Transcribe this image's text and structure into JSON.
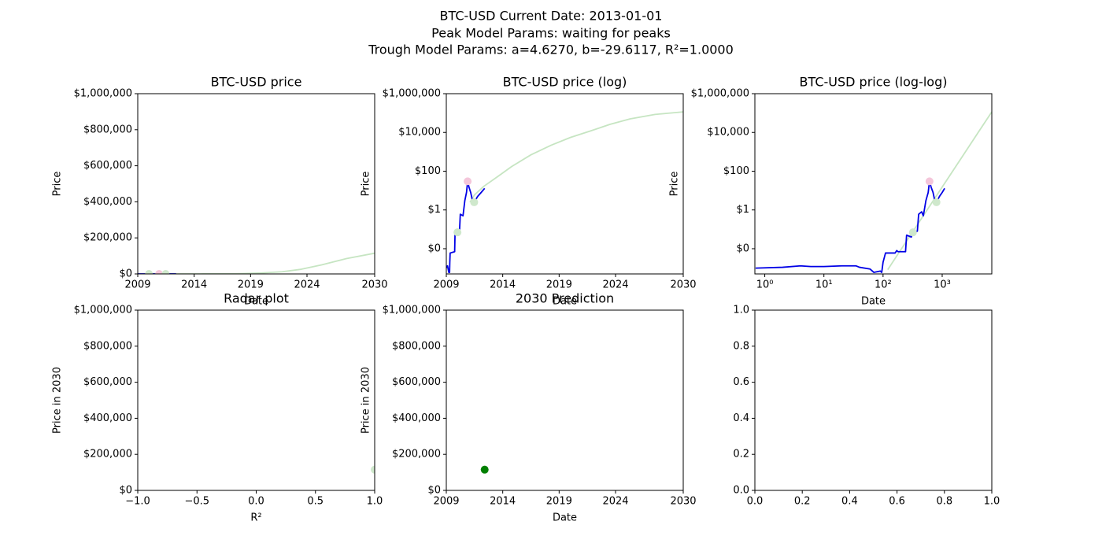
{
  "suptitle": [
    "BTC-USD Current Date: 2013-01-01",
    "Peak Model Params: waiting for peaks",
    "Trough Model Params: a=4.6270, b=-29.6117, R²=1.0000"
  ],
  "chart_data": [
    {
      "type": "line",
      "title": "BTC-USD price",
      "xlabel": "Date",
      "ylabel": "Price",
      "xlim": [
        2009,
        2030
      ],
      "xticks": [
        2009,
        2014,
        2019,
        2024,
        2030
      ],
      "ylim": [
        0,
        1000000
      ],
      "yticks": [
        {
          "value": 0,
          "label": "$0"
        },
        {
          "value": 200000,
          "label": "$200,000"
        },
        {
          "value": 400000,
          "label": "$400,000"
        },
        {
          "value": 600000,
          "label": "$600,000"
        },
        {
          "value": 800000,
          "label": "$800,000"
        },
        {
          "value": 1000000,
          "label": "$1,000,000"
        }
      ],
      "series": [
        {
          "kind": "line",
          "color": "#c6e5c2",
          "x": [
            2011.1,
            2011.5,
            2012.35,
            2013.5,
            2014.8,
            2016.5,
            2018.3,
            2020,
            2021.8,
            2023.5,
            2025.3,
            2027.5,
            2030
          ],
          "values": [
            2.5,
            6,
            17,
            50,
            175,
            700,
            2200,
            5500,
            12000,
            26000,
            50000,
            85000,
            115000
          ]
        },
        {
          "kind": "line",
          "color": "#0000e6",
          "x": [
            2009.002,
            2009.03,
            2009.11,
            2009.22,
            2009.29,
            2009.31,
            2009.34,
            2009.74,
            2009.77,
            2009.99,
            2010.17,
            2010.24,
            2010.48,
            2010.64,
            2010.79,
            2010.89,
            2011.01,
            2011.16,
            2011.32,
            2011.47,
            2011.78,
            2012.09,
            2012.4
          ],
          "values": [
            0.001,
            0.0012,
            0.0013,
            0.0006,
            0.0006,
            0.002,
            0.006,
            0.007,
            0.05,
            0.07,
            0.08,
            0.6,
            0.5,
            3,
            8,
            30,
            15,
            8,
            3,
            2.5,
            5,
            8,
            13
          ]
        },
        {
          "kind": "scatter",
          "color": "#f4c6da",
          "x": [
            2010.89
          ],
          "values": [
            30
          ]
        },
        {
          "kind": "scatter",
          "color": "#cfe8cc",
          "x": [
            2009.99,
            2011.47
          ],
          "values": [
            0.07,
            2.5
          ]
        }
      ]
    },
    {
      "type": "line",
      "title": "BTC-USD price (log)",
      "xlabel": "Date",
      "ylabel": "Price",
      "yscale": "log",
      "xlim": [
        2009,
        2030
      ],
      "xticks": [
        2009,
        2014,
        2019,
        2024,
        2030
      ],
      "ylim": [
        0.0005,
        1000000
      ],
      "yticks": [
        {
          "value": 0.01,
          "label": "$0"
        },
        {
          "value": 1,
          "label": "$1"
        },
        {
          "value": 100,
          "label": "$100"
        },
        {
          "value": 10000,
          "label": "$10,000"
        },
        {
          "value": 1000000,
          "label": "$1,000,000"
        }
      ],
      "series": [
        {
          "kind": "line",
          "color": "#c6e5c2",
          "x": [
            2011.1,
            2011.5,
            2012.35,
            2013.5,
            2014.8,
            2016.5,
            2018.3,
            2020,
            2021.8,
            2023.5,
            2025.3,
            2027.5,
            2030
          ],
          "values": [
            2.5,
            6,
            17,
            50,
            175,
            700,
            2200,
            5500,
            12000,
            26000,
            50000,
            85000,
            115000
          ]
        },
        {
          "kind": "line",
          "color": "#0000e6",
          "x": [
            2009.002,
            2009.03,
            2009.11,
            2009.22,
            2009.29,
            2009.31,
            2009.34,
            2009.74,
            2009.77,
            2009.99,
            2010.17,
            2010.24,
            2010.48,
            2010.64,
            2010.79,
            2010.89,
            2011.01,
            2011.16,
            2011.32,
            2011.47,
            2011.78,
            2012.09,
            2012.4
          ],
          "values": [
            0.001,
            0.0012,
            0.0013,
            0.0006,
            0.0006,
            0.002,
            0.006,
            0.007,
            0.05,
            0.07,
            0.08,
            0.6,
            0.5,
            3,
            8,
            30,
            15,
            8,
            3,
            2.5,
            5,
            8,
            13
          ]
        },
        {
          "kind": "scatter",
          "color": "#f4c6da",
          "x": [
            2010.89
          ],
          "values": [
            30
          ]
        },
        {
          "kind": "scatter",
          "color": "#cfe8cc",
          "x": [
            2009.99,
            2011.47
          ],
          "values": [
            0.07,
            2.5
          ]
        }
      ]
    },
    {
      "type": "line",
      "title": "BTC-USD price (log-log)",
      "xlabel": "Date",
      "ylabel": "Price",
      "xscale": "log",
      "yscale": "log",
      "xlim": [
        0.68,
        6900
      ],
      "xticks": [
        {
          "value": 1,
          "label": "10⁰"
        },
        {
          "value": 10,
          "label": "10¹"
        },
        {
          "value": 100,
          "label": "10²"
        },
        {
          "value": 1000,
          "label": "10³"
        }
      ],
      "ylim": [
        0.0005,
        1000000
      ],
      "yticks": [
        {
          "value": 0.01,
          "label": "$0"
        },
        {
          "value": 1,
          "label": "$1"
        },
        {
          "value": 100,
          "label": "$100"
        },
        {
          "value": 10000,
          "label": "$10,000"
        },
        {
          "value": 1000000,
          "label": "$1,000,000"
        }
      ],
      "series": [
        {
          "kind": "line",
          "color": "#c6e5c2",
          "x": [
            120,
            200,
            500,
            1000,
            2000,
            4000,
            6900
          ],
          "values": [
            0.00083,
            0.0089,
            0.61,
            15.2,
            375,
            9270,
            115600
          ]
        },
        {
          "kind": "line",
          "color": "#0000e6",
          "x": [
            0.7,
            2,
            4,
            6,
            10,
            20,
            35,
            40,
            60,
            70,
            90,
            95,
            100,
            110,
            130,
            160,
            170,
            180,
            240,
            250,
            300,
            320,
            380,
            400,
            450,
            480,
            530,
            580,
            610,
            650,
            700,
            750,
            800,
            900,
            1000,
            1100
          ],
          "values": [
            0.001,
            0.0011,
            0.0013,
            0.0012,
            0.0012,
            0.0013,
            0.0013,
            0.0011,
            0.0009,
            0.0006,
            0.0007,
            0.0006,
            0.002,
            0.006,
            0.006,
            0.006,
            0.008,
            0.007,
            0.007,
            0.05,
            0.04,
            0.07,
            0.08,
            0.6,
            0.8,
            0.5,
            3,
            8,
            30,
            15,
            8,
            3,
            2.5,
            5,
            8,
            13
          ]
        },
        {
          "kind": "scatter",
          "color": "#f4c6da",
          "x": [
            610
          ],
          "values": [
            30
          ]
        },
        {
          "kind": "scatter",
          "color": "#cfe8cc",
          "x": [
            320,
            800
          ],
          "values": [
            0.07,
            2.5
          ]
        }
      ]
    },
    {
      "type": "scatter",
      "title": "Radar plot",
      "xlabel": "R²",
      "ylabel": "Price in 2030",
      "xlim": [
        -1,
        1
      ],
      "xticks": [
        {
          "value": -1,
          "label": "−1.0"
        },
        {
          "value": -0.5,
          "label": "−0.5"
        },
        {
          "value": 0,
          "label": "0.0"
        },
        0.5,
        {
          "value": 1,
          "label": "1.0"
        }
      ],
      "ylim": [
        0,
        1000000
      ],
      "yticks": [
        {
          "value": 0,
          "label": "$0"
        },
        {
          "value": 200000,
          "label": "$200,000"
        },
        {
          "value": 400000,
          "label": "$400,000"
        },
        {
          "value": 600000,
          "label": "$600,000"
        },
        {
          "value": 800000,
          "label": "$800,000"
        },
        {
          "value": 1000000,
          "label": "$1,000,000"
        }
      ],
      "series": [
        {
          "kind": "scatter",
          "color": "#cfe8cc",
          "x": [
            1
          ],
          "values": [
            115000
          ]
        }
      ]
    },
    {
      "type": "scatter",
      "title": "2030 Prediction",
      "xlabel": "Date",
      "ylabel": "Price in 2030",
      "xlim": [
        2009,
        2030
      ],
      "xticks": [
        2009,
        2014,
        2019,
        2024,
        2030
      ],
      "ylim": [
        0,
        1000000
      ],
      "yticks": [
        {
          "value": 0,
          "label": "$0"
        },
        {
          "value": 200000,
          "label": "$200,000"
        },
        {
          "value": 400000,
          "label": "$400,000"
        },
        {
          "value": 600000,
          "label": "$600,000"
        },
        {
          "value": 800000,
          "label": "$800,000"
        },
        {
          "value": 1000000,
          "label": "$1,000,000"
        }
      ],
      "series": [
        {
          "kind": "scatter",
          "color": "#008000",
          "x": [
            2012.4
          ],
          "values": [
            115000
          ]
        }
      ]
    },
    {
      "type": "scatter",
      "xlim": [
        0,
        1
      ],
      "xticks": [
        {
          "value": 0,
          "label": "0.0"
        },
        0.2,
        0.4,
        0.6,
        0.8,
        {
          "value": 1,
          "label": "1.0"
        }
      ],
      "ylim": [
        0,
        1
      ],
      "yticks": [
        {
          "value": 0,
          "label": "0.0"
        },
        0.2,
        0.4,
        0.6,
        0.8,
        {
          "value": 1,
          "label": "1.0"
        }
      ],
      "series": []
    }
  ]
}
